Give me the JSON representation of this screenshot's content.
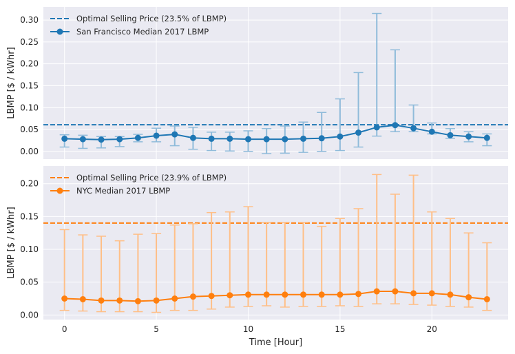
{
  "chart_data": [
    {
      "type": "line",
      "ylabel": "LBMP [$ / kWhr]",
      "xlabel": "",
      "xlim": [
        -1.15,
        24.15
      ],
      "ylim": [
        -0.0175,
        0.33
      ],
      "yticks": [
        0.0,
        0.05,
        0.1,
        0.15,
        0.2,
        0.25,
        0.3
      ],
      "ytick_labels": [
        "0.00",
        "0.05",
        "0.10",
        "0.15",
        "0.20",
        "0.25",
        "0.30"
      ],
      "xticks": [
        0,
        5,
        10,
        15,
        20
      ],
      "xtick_labels": [],
      "grid": true,
      "legend_position": "top-left",
      "color": "#1f77b4",
      "threshold": {
        "name": "Optimal Selling Price (23.5% of LBMP)",
        "value": 0.061
      },
      "series": [
        {
          "name": "San Francisco Median 2017 LBMP",
          "x": [
            0,
            1,
            2,
            3,
            4,
            5,
            6,
            7,
            8,
            9,
            10,
            11,
            12,
            13,
            14,
            15,
            16,
            17,
            18,
            19,
            20,
            21,
            22,
            23
          ],
          "values": [
            0.029,
            0.028,
            0.027,
            0.028,
            0.031,
            0.036,
            0.039,
            0.031,
            0.029,
            0.029,
            0.028,
            0.028,
            0.028,
            0.029,
            0.03,
            0.034,
            0.043,
            0.055,
            0.06,
            0.053,
            0.045,
            0.037,
            0.034,
            0.031
          ],
          "lower": [
            0.01,
            0.007,
            0.008,
            0.011,
            0.022,
            0.022,
            0.013,
            0.005,
            0.002,
            0.001,
            0.0,
            -0.005,
            -0.004,
            -0.002,
            0.0,
            0.002,
            0.01,
            0.035,
            0.045,
            0.045,
            0.04,
            0.03,
            0.022,
            0.013
          ],
          "upper": [
            0.038,
            0.037,
            0.034,
            0.034,
            0.039,
            0.053,
            0.058,
            0.055,
            0.044,
            0.044,
            0.047,
            0.052,
            0.058,
            0.067,
            0.089,
            0.12,
            0.18,
            0.315,
            0.232,
            0.106,
            0.065,
            0.052,
            0.045,
            0.04
          ]
        }
      ]
    },
    {
      "type": "line",
      "ylabel": "LBMP [$ / kWhr]",
      "xlabel": "Time [Hour]",
      "xlim": [
        -1.15,
        24.15
      ],
      "ylim": [
        -0.007,
        0.227
      ],
      "yticks": [
        0.0,
        0.05,
        0.1,
        0.15,
        0.2
      ],
      "ytick_labels": [
        "0.00",
        "0.05",
        "0.10",
        "0.15",
        "0.20"
      ],
      "xticks": [
        0,
        5,
        10,
        15,
        20
      ],
      "xtick_labels": [
        "0",
        "5",
        "10",
        "15",
        "20"
      ],
      "grid": true,
      "legend_position": "top-left",
      "color": "#ff7f0e",
      "threshold": {
        "name": "Optimal Selling Price (23.9% of LBMP)",
        "value": 0.14
      },
      "series": [
        {
          "name": "NYC Median 2017 LBMP",
          "x": [
            0,
            1,
            2,
            3,
            4,
            5,
            6,
            7,
            8,
            9,
            10,
            11,
            12,
            13,
            14,
            15,
            16,
            17,
            18,
            19,
            20,
            21,
            22,
            23
          ],
          "values": [
            0.025,
            0.024,
            0.022,
            0.022,
            0.021,
            0.022,
            0.025,
            0.028,
            0.029,
            0.03,
            0.031,
            0.031,
            0.031,
            0.031,
            0.031,
            0.031,
            0.032,
            0.036,
            0.036,
            0.033,
            0.033,
            0.031,
            0.027,
            0.024
          ],
          "lower": [
            0.007,
            0.006,
            0.005,
            0.005,
            0.005,
            0.004,
            0.007,
            0.007,
            0.009,
            0.012,
            0.013,
            0.014,
            0.012,
            0.013,
            0.013,
            0.014,
            0.013,
            0.017,
            0.017,
            0.016,
            0.015,
            0.013,
            0.012,
            0.007
          ],
          "upper": [
            0.13,
            0.122,
            0.12,
            0.113,
            0.123,
            0.124,
            0.137,
            0.139,
            0.156,
            0.157,
            0.165,
            0.141,
            0.141,
            0.141,
            0.135,
            0.147,
            0.162,
            0.214,
            0.184,
            0.213,
            0.157,
            0.147,
            0.125,
            0.11
          ]
        }
      ]
    }
  ]
}
